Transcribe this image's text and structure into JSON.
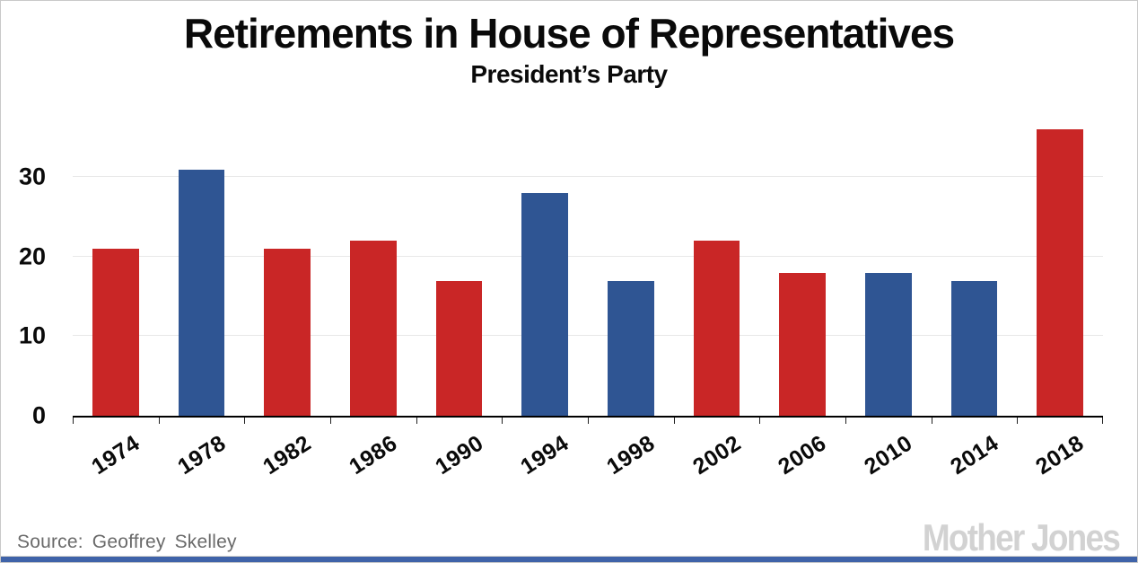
{
  "header": {
    "title": "Retirements in House of Representatives",
    "subtitle": "President’s Party"
  },
  "chart_data": {
    "type": "bar",
    "title": "Retirements in House of Representatives",
    "subtitle": "President’s Party",
    "categories": [
      "1974",
      "1978",
      "1982",
      "1986",
      "1990",
      "1994",
      "1998",
      "2002",
      "2006",
      "2010",
      "2014",
      "2018"
    ],
    "values": [
      21,
      31,
      21,
      22,
      17,
      28,
      17,
      22,
      18,
      18,
      17,
      36
    ],
    "parties": [
      "R",
      "D",
      "R",
      "R",
      "R",
      "D",
      "D",
      "R",
      "R",
      "D",
      "D",
      "R"
    ],
    "party_colors": {
      "R": "#c92626",
      "D": "#2f5593"
    },
    "xlabel": "",
    "ylabel": "",
    "yticks": [
      0,
      10,
      20,
      30
    ],
    "ylim": [
      0,
      37.5
    ],
    "grid": "horizontal",
    "gridline_color": "#e8e8e8",
    "axis_color": "#000000",
    "legend": "none"
  },
  "footer": {
    "source": "Source: Geoffrey Skelley",
    "logo": "Mother Jones",
    "accent_color": "#3f63a9"
  }
}
